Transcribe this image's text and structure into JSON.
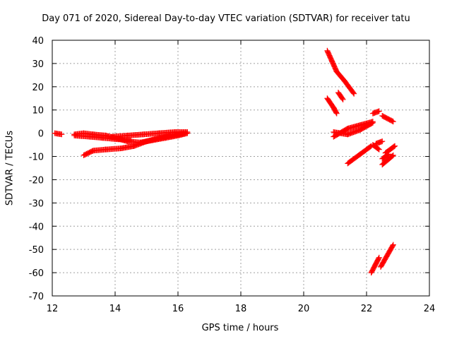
{
  "chart_data": {
    "type": "scatter",
    "title": "Day 071 of 2020, Sidereal Day-to-day VTEC variation (SDTVAR) for receiver tatu",
    "xlabel": "GPS time / hours",
    "ylabel": "SDTVAR / TECUs",
    "xlim": [
      12,
      24
    ],
    "ylim": [
      -70,
      40
    ],
    "xticks": [
      "12",
      "14",
      "16",
      "18",
      "20",
      "22",
      "24"
    ],
    "yticks": [
      "40",
      "30",
      "20",
      "10",
      "0",
      "-10",
      "-20",
      "-30",
      "-40",
      "-50",
      "-60",
      "-70"
    ],
    "grid": true,
    "marker": "+",
    "color": "#ff0000",
    "series": [
      {
        "segments": [
          [
            [
              12.08,
              0.0
            ],
            [
              12.3,
              -0.5
            ]
          ],
          [
            [
              12.7,
              -1.0
            ],
            [
              13.2,
              -1.5
            ],
            [
              13.6,
              -2.0
            ],
            [
              14.0,
              -2.5
            ],
            [
              14.5,
              -3.0
            ]
          ],
          [
            [
              12.7,
              -0.5
            ],
            [
              13.0,
              0.0
            ],
            [
              13.3,
              -0.5
            ],
            [
              13.7,
              -1.0
            ],
            [
              14.0,
              -2.0
            ],
            [
              14.4,
              -3.5
            ],
            [
              14.8,
              -4.0
            ],
            [
              15.2,
              -3.0
            ],
            [
              15.6,
              -2.0
            ],
            [
              16.0,
              -1.0
            ],
            [
              16.3,
              0.0
            ]
          ],
          [
            [
              13.9,
              -1.5
            ],
            [
              14.4,
              -1.0
            ],
            [
              14.9,
              -0.5
            ],
            [
              15.4,
              0.0
            ],
            [
              15.9,
              0.5
            ],
            [
              16.3,
              0.5
            ]
          ],
          [
            [
              13.0,
              -9.5
            ],
            [
              13.3,
              -7.5
            ],
            [
              13.7,
              -7.0
            ],
            [
              14.2,
              -6.5
            ],
            [
              14.6,
              -5.5
            ],
            [
              15.0,
              -3.5
            ],
            [
              15.4,
              -2.0
            ],
            [
              15.8,
              -1.0
            ],
            [
              16.2,
              0.0
            ]
          ],
          [
            [
              20.75,
              35.5
            ],
            [
              20.9,
              31.0
            ],
            [
              21.05,
              26.5
            ],
            [
              21.3,
              22.5
            ],
            [
              21.6,
              17.0
            ]
          ],
          [
            [
              20.75,
              15.0
            ],
            [
              20.95,
              11.0
            ],
            [
              21.05,
              8.5
            ]
          ],
          [
            [
              21.1,
              17.5
            ],
            [
              21.25,
              14.5
            ]
          ],
          [
            [
              20.95,
              0.5
            ],
            [
              21.4,
              -0.5
            ],
            [
              21.8,
              1.5
            ],
            [
              22.2,
              4.5
            ]
          ],
          [
            [
              20.95,
              -1.5
            ],
            [
              21.4,
              2.0
            ],
            [
              21.8,
              3.5
            ],
            [
              22.2,
              5.0
            ]
          ],
          [
            [
              22.2,
              8.5
            ],
            [
              22.4,
              9.5
            ]
          ],
          [
            [
              22.5,
              7.5
            ],
            [
              22.85,
              5.0
            ]
          ],
          [
            [
              21.4,
              -13.0
            ],
            [
              21.8,
              -9.0
            ],
            [
              22.15,
              -5.5
            ]
          ],
          [
            [
              22.2,
              -5.0
            ],
            [
              22.4,
              -7.0
            ]
          ],
          [
            [
              22.3,
              -4.5
            ],
            [
              22.5,
              -3.5
            ]
          ],
          [
            [
              22.5,
              -13.5
            ],
            [
              22.85,
              -9.5
            ]
          ],
          [
            [
              22.6,
              -8.5
            ],
            [
              22.9,
              -5.5
            ]
          ],
          [
            [
              22.5,
              -11.0
            ],
            [
              22.7,
              -9.0
            ]
          ],
          [
            [
              22.15,
              -60.0
            ],
            [
              22.4,
              -53.5
            ]
          ],
          [
            [
              22.45,
              -57.5
            ],
            [
              22.85,
              -48.0
            ]
          ]
        ]
      }
    ]
  }
}
